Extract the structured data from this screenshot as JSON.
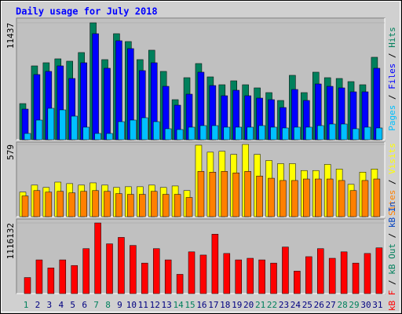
{
  "chart_data": {
    "type": "bar",
    "title": "Daily usage for July 2018",
    "categories": [
      "1",
      "2",
      "3",
      "4",
      "5",
      "6",
      "7",
      "8",
      "9",
      "10",
      "11",
      "12",
      "13",
      "14",
      "15",
      "16",
      "17",
      "18",
      "19",
      "20",
      "21",
      "22",
      "23",
      "24",
      "25",
      "26",
      "27",
      "28",
      "29",
      "30",
      "31"
    ],
    "x_label_colors": [
      "#00805c",
      "#000080",
      "#000080",
      "#000080",
      "#000080",
      "#000080",
      "#00805c",
      "#00805c",
      "#000080",
      "#000080",
      "#000080",
      "#000080",
      "#000080",
      "#00805c",
      "#00805c",
      "#000080",
      "#000080",
      "#000080",
      "#000080",
      "#000080",
      "#00805c",
      "#00805c",
      "#000080",
      "#000080",
      "#000080",
      "#000080",
      "#000080",
      "#00805c",
      "#00805c",
      "#000080",
      "#000080"
    ],
    "legend_separator": " / ",
    "panels": [
      {
        "ylim": [
          0,
          11437
        ],
        "yticks": [
          11437
        ],
        "series": [
          {
            "name": "Hits",
            "color": "#00805c",
            "values": [
              3533,
              7219,
              7526,
              7910,
              7680,
              8525,
              11437,
              7834,
              10368,
              9600,
              7834,
              8755,
              6682,
              3917,
              6067,
              7450,
              6144,
              5376,
              5760,
              5376,
              5069,
              4608,
              3840,
              6298,
              4608,
              6605,
              6067,
              5990,
              5683,
              5376,
              8064
            ]
          },
          {
            "name": "Files",
            "color": "#0000ff",
            "values": [
              2995,
              6374,
              6682,
              7219,
              5990,
              7526,
              10368,
              6989,
              9677,
              8909,
              6758,
              7526,
              5222,
              3379,
              4454,
              6605,
              5299,
              4301,
              4838,
              4301,
              4070,
              3917,
              3149,
              4915,
              3840,
              5453,
              5222,
              5069,
              4685,
              4685,
              6989
            ]
          },
          {
            "name": "Pages",
            "color": "#00c0ff",
            "values": [
              614,
              1920,
              3072,
              2918,
              2304,
              1229,
              614,
              614,
              1766,
              1920,
              2150,
              1766,
              1075,
              998,
              1229,
              1382,
              1382,
              1229,
              1229,
              1229,
              1382,
              1229,
              1152,
              1229,
              1229,
              1382,
              1536,
              1536,
              1075,
              1229,
              1152
            ]
          }
        ]
      },
      {
        "ylim": [
          0,
          579
        ],
        "yticks": [
          579
        ],
        "series": [
          {
            "name": "Visits",
            "color": "#ffff00",
            "values": [
              197,
              253,
              234,
              277,
              265,
              253,
              271,
              253,
              234,
              240,
              240,
              253,
              234,
              246,
              209,
              573,
              517,
              524,
              499,
              579,
              499,
              450,
              425,
              425,
              370,
              370,
              419,
              382,
              259,
              357,
              382
            ]
          },
          {
            "name": "Sites",
            "color": "#ff8000",
            "values": [
              166,
              209,
              197,
              203,
              191,
              203,
              209,
              203,
              185,
              179,
              179,
              203,
              179,
              179,
              154,
              363,
              357,
              363,
              351,
              363,
              326,
              308,
              290,
              290,
              302,
              302,
              302,
              290,
              209,
              290,
              302
            ]
          }
        ]
      },
      {
        "ylim": [
          0,
          1116132
        ],
        "yticks": [
          1116132
        ],
        "series": [
          {
            "name": "kB In",
            "color": "#0040c0",
            "values": [
              0,
              0,
              0,
              0,
              0,
              0,
              0,
              0,
              0,
              0,
              0,
              0,
              0,
              0,
              0,
              0,
              0,
              0,
              0,
              0,
              0,
              0,
              0,
              0,
              0,
              0,
              0,
              0,
              0,
              0,
              0
            ]
          },
          {
            "name": "kB Out",
            "color": "#00805c",
            "values": [
              0,
              0,
              0,
              0,
              0,
              0,
              0,
              0,
              0,
              0,
              0,
              0,
              0,
              0,
              0,
              0,
              0,
              0,
              0,
              0,
              0,
              0,
              0,
              0,
              0,
              0,
              0,
              0,
              0,
              0,
              0
            ]
          },
          {
            "name": "kB F",
            "color": "#ff0000",
            "values": [
              253660,
              532686,
              405856,
              532686,
              443905,
              710248,
              1116132,
              786346,
              887810,
              760980,
              481954,
              710248,
              532686,
              304392,
              659516,
              608784,
              938542,
              634150,
              532686,
              558052,
              532686,
              481954,
              735614,
              355124,
              583418,
              710248,
              558052,
              659516,
              481954,
              634150,
              722931
            ]
          }
        ]
      }
    ]
  }
}
